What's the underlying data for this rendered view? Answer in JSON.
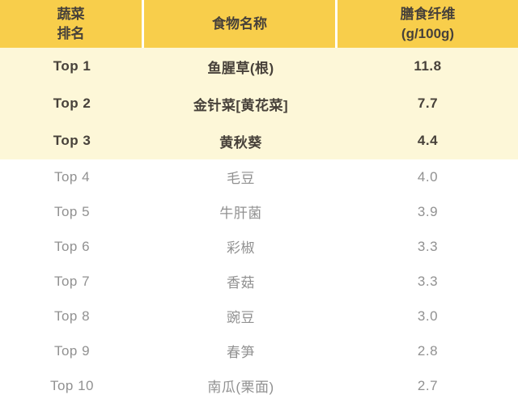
{
  "colors": {
    "header_bg": "#f8ce4b",
    "highlight_row_bg": "#fdf7d8",
    "normal_row_bg": "#ffffff",
    "dark_text": "#47413a",
    "gray_text": "#919191",
    "divider": "#ffffff"
  },
  "table": {
    "header": {
      "rank_line1": "蔬菜",
      "rank_line2": "排名",
      "food": "食物名称",
      "fiber_line1": "膳食纤维",
      "fiber_line2": "(g/100g)"
    },
    "rows": [
      {
        "rank": "Top 1",
        "food": "鱼腥草(根)",
        "fiber": "11.8",
        "highlight": true
      },
      {
        "rank": "Top 2",
        "food": "金针菜[黄花菜]",
        "fiber": "7.7",
        "highlight": true
      },
      {
        "rank": "Top 3",
        "food": "黄秋葵",
        "fiber": "4.4",
        "highlight": true
      },
      {
        "rank": "Top 4",
        "food": "毛豆",
        "fiber": "4.0",
        "highlight": false
      },
      {
        "rank": "Top 5",
        "food": "牛肝菌",
        "fiber": "3.9",
        "highlight": false
      },
      {
        "rank": "Top 6",
        "food": "彩椒",
        "fiber": "3.3",
        "highlight": false
      },
      {
        "rank": "Top 7",
        "food": "香菇",
        "fiber": "3.3",
        "highlight": false
      },
      {
        "rank": "Top 8",
        "food": "豌豆",
        "fiber": "3.0",
        "highlight": false
      },
      {
        "rank": "Top 9",
        "food": "春笋",
        "fiber": "2.8",
        "highlight": false
      },
      {
        "rank": "Top 10",
        "food": "南瓜(栗面)",
        "fiber": "2.7",
        "highlight": false
      }
    ]
  },
  "chart_data": {
    "type": "table",
    "title": "",
    "columns": [
      "蔬菜排名",
      "食物名称",
      "膳食纤维 (g/100g)"
    ],
    "rows": [
      [
        "Top 1",
        "鱼腥草(根)",
        11.8
      ],
      [
        "Top 2",
        "金针菜[黄花菜]",
        7.7
      ],
      [
        "Top 3",
        "黄秋葵",
        4.4
      ],
      [
        "Top 4",
        "毛豆",
        4.0
      ],
      [
        "Top 5",
        "牛肝菌",
        3.9
      ],
      [
        "Top 6",
        "彩椒",
        3.3
      ],
      [
        "Top 7",
        "香菇",
        3.3
      ],
      [
        "Top 8",
        "豌豆",
        3.0
      ],
      [
        "Top 9",
        "春笋",
        2.8
      ],
      [
        "Top 10",
        "南瓜(栗面)",
        2.7
      ]
    ],
    "layout_hints": {
      "highlighted_rows": [
        0,
        1,
        2
      ],
      "header_style": "golden-yellow band with white column dividers",
      "highlight_style": "pale cream background, bold dark text",
      "normal_style": "white background, gray text"
    }
  }
}
